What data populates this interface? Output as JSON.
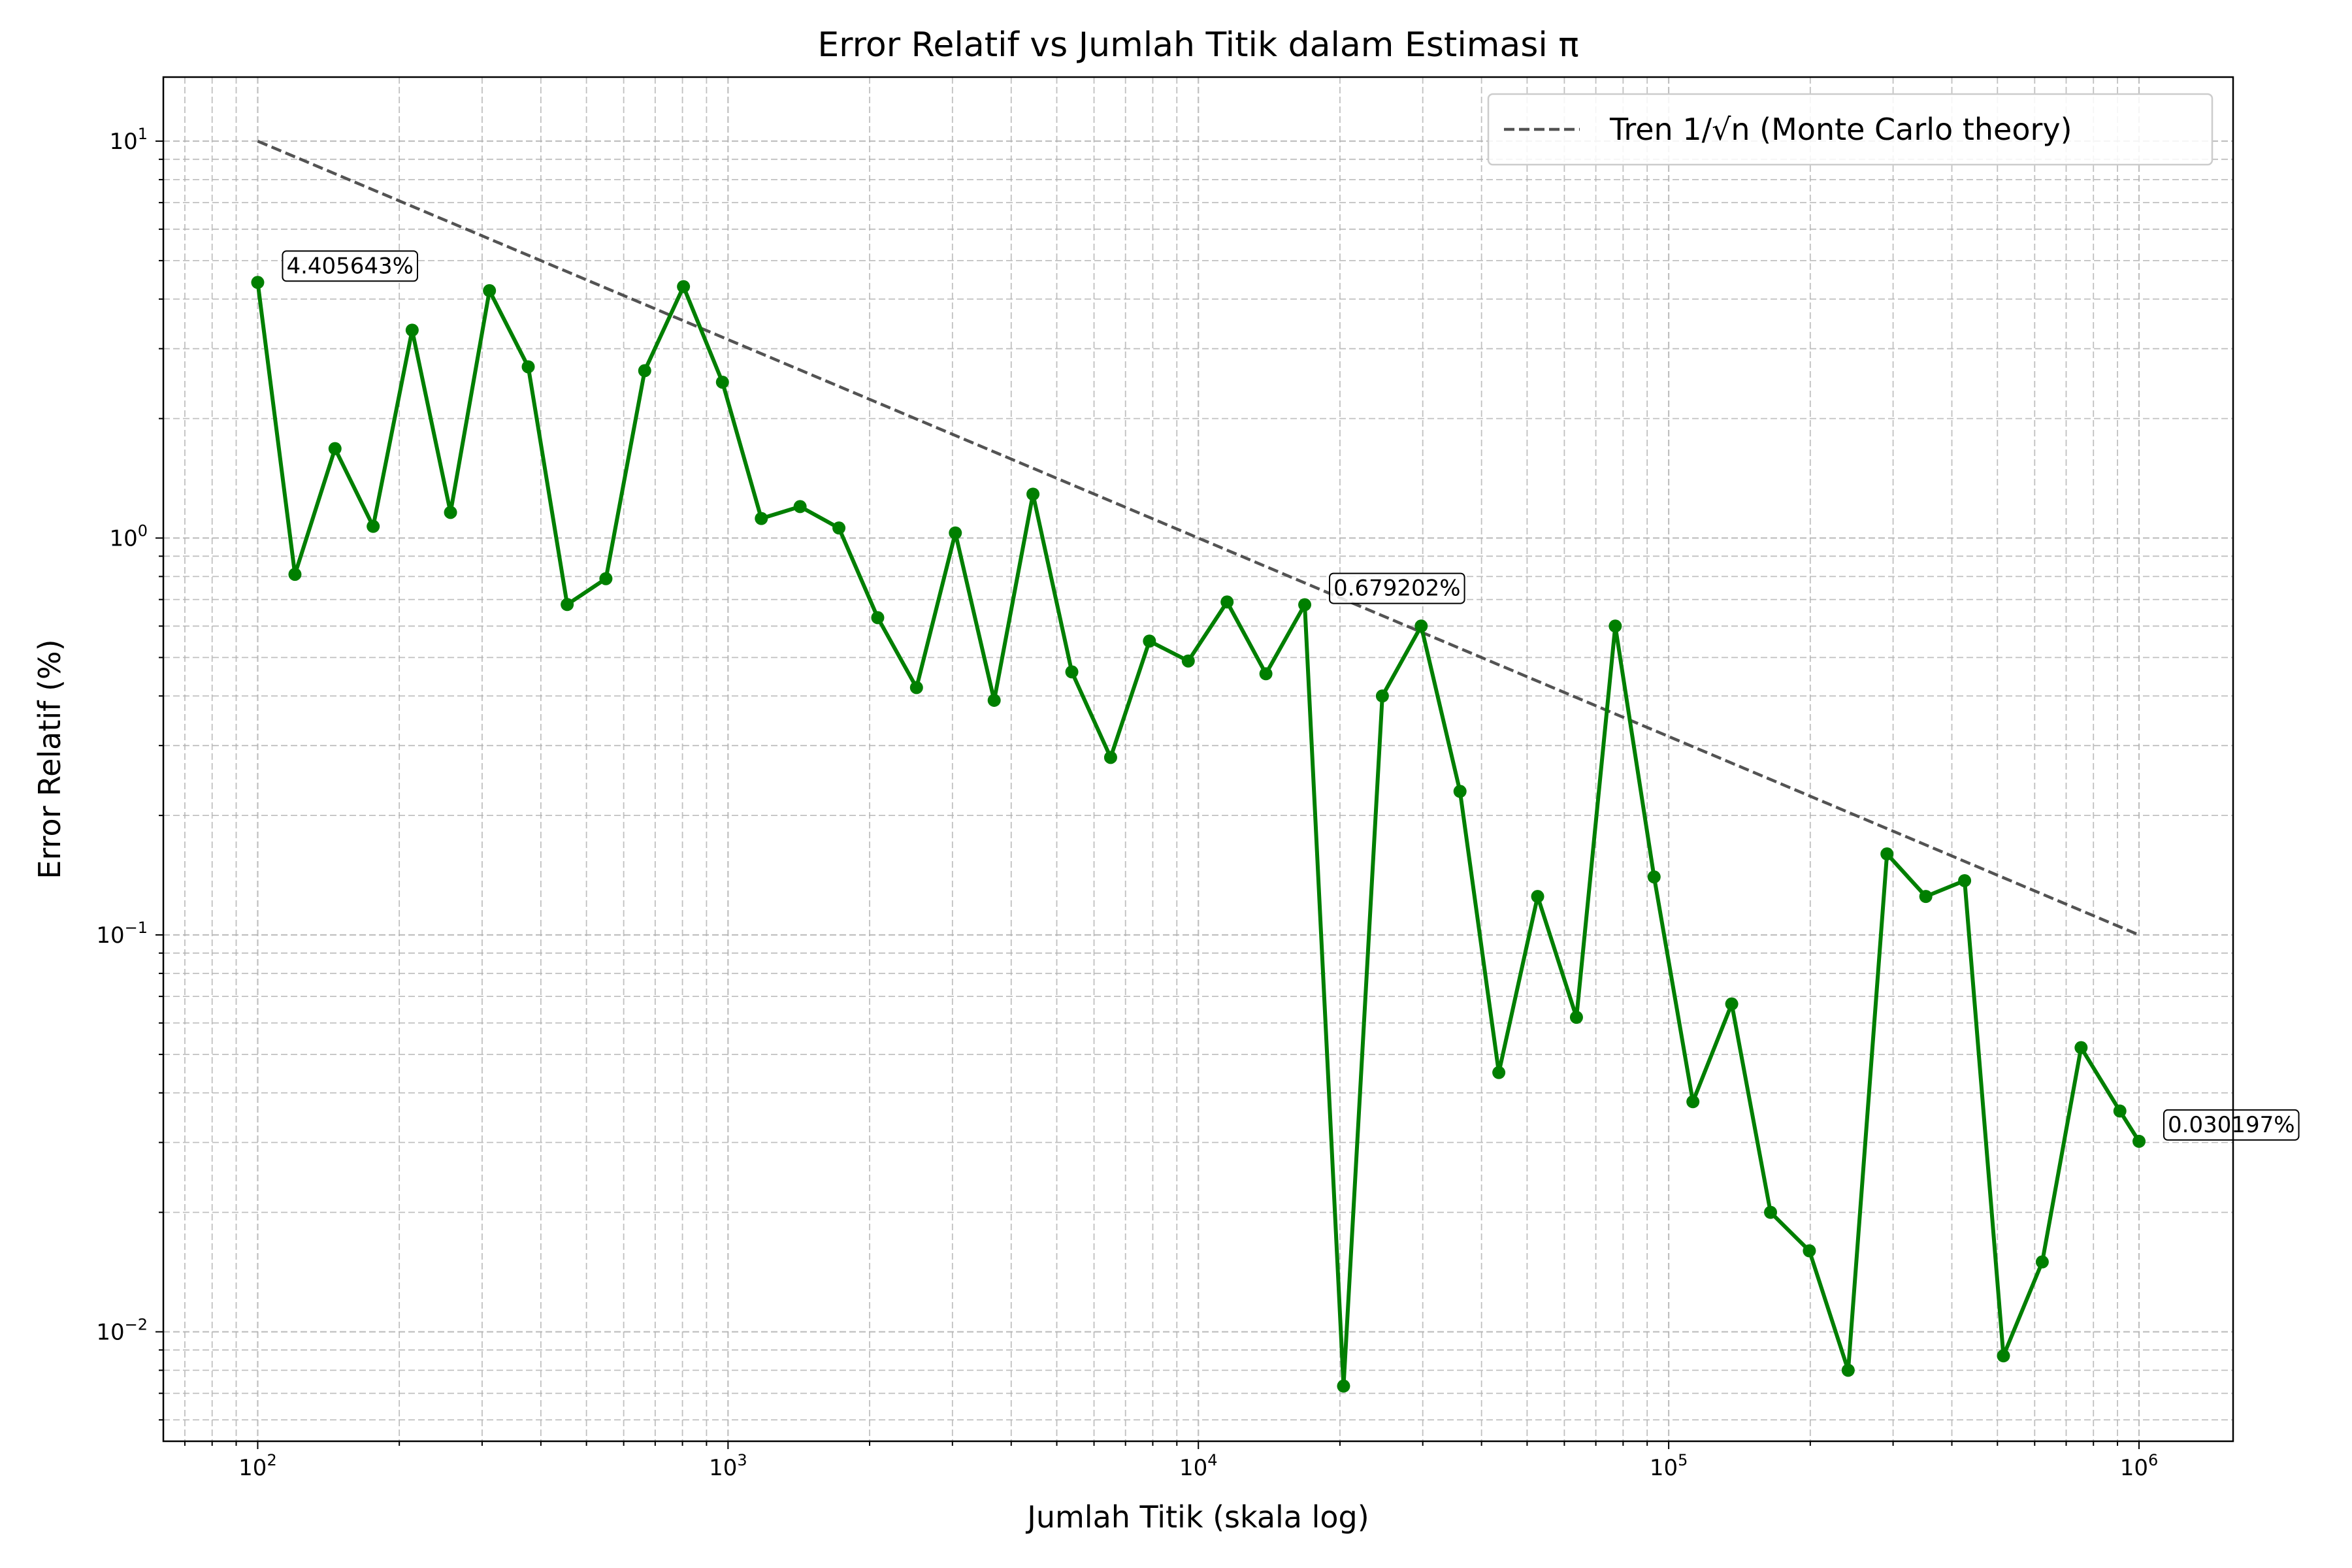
{
  "chart_data": {
    "type": "line",
    "title": "Error Relatif vs Jumlah Titik dalam Estimasi π",
    "xlabel": "Jumlah Titik (skala log)",
    "ylabel": "Error Relatif (%)",
    "x_scale": "log",
    "y_scale": "log",
    "xlim": [
      63,
      1585000
    ],
    "ylim": [
      0.0053,
      14.5
    ],
    "grid": "major and minor, dashed",
    "x_ticks": [
      {
        "value": 100,
        "base": "10",
        "exp": "2"
      },
      {
        "value": 1000,
        "base": "10",
        "exp": "3"
      },
      {
        "value": 10000,
        "base": "10",
        "exp": "4"
      },
      {
        "value": 100000,
        "base": "10",
        "exp": "5"
      },
      {
        "value": 1000000,
        "base": "10",
        "exp": "6"
      }
    ],
    "y_ticks": [
      {
        "value": 0.01,
        "base": "10",
        "exp": "−2"
      },
      {
        "value": 0.1,
        "base": "10",
        "exp": "−1"
      },
      {
        "value": 1,
        "base": "10",
        "exp": "0"
      },
      {
        "value": 10,
        "base": "10",
        "exp": "1"
      }
    ],
    "legend": {
      "position": "top-right",
      "entries": [
        "Tren 1/√n (Monte Carlo theory)"
      ]
    },
    "series": [
      {
        "style": "solid line with circle markers",
        "color": "#007f00",
        "x": [
          100,
          120,
          146,
          176,
          213,
          257,
          311,
          376,
          455,
          550,
          665,
          804,
          973,
          1177,
          1423,
          1721,
          2081,
          2516,
          3043,
          3680,
          4450,
          5382,
          6508,
          7870,
          9518,
          11510,
          13919,
          16833,
          20356,
          24617,
          29769,
          36000,
          43535,
          52646,
          63665,
          76989,
          93103,
          112589,
          136153,
          164648,
          199106,
          240779,
          291175,
          352117,
          425813,
          514950,
          622710,
          753070,
          910670,
          1000000
        ],
        "y": [
          4.405643,
          0.81,
          1.68,
          1.07,
          3.34,
          1.16,
          4.2,
          2.7,
          0.68,
          0.79,
          2.64,
          4.3,
          2.47,
          1.12,
          1.2,
          1.06,
          0.63,
          0.42,
          1.03,
          0.39,
          1.29,
          0.46,
          0.28,
          0.55,
          0.49,
          0.69,
          0.455,
          0.679202,
          0.0073,
          0.4,
          0.6,
          0.23,
          0.045,
          0.125,
          0.062,
          0.6,
          0.14,
          0.038,
          0.067,
          0.02,
          0.016,
          0.008,
          0.16,
          0.125,
          0.137,
          0.0087,
          0.015,
          0.052,
          0.036,
          0.030197
        ]
      },
      {
        "name": "Tren 1/√n (Monte Carlo theory)",
        "style": "dashed",
        "color": "#404040",
        "x": [
          100,
          1000000
        ],
        "y": [
          10,
          0.1
        ]
      }
    ],
    "annotations": [
      {
        "text": "4.405643%",
        "x": 100,
        "y": 4.405643
      },
      {
        "text": "0.679202%",
        "x": 16833,
        "y": 0.679202
      },
      {
        "text": "0.030197%",
        "x": 1000000,
        "y": 0.030197
      }
    ]
  }
}
